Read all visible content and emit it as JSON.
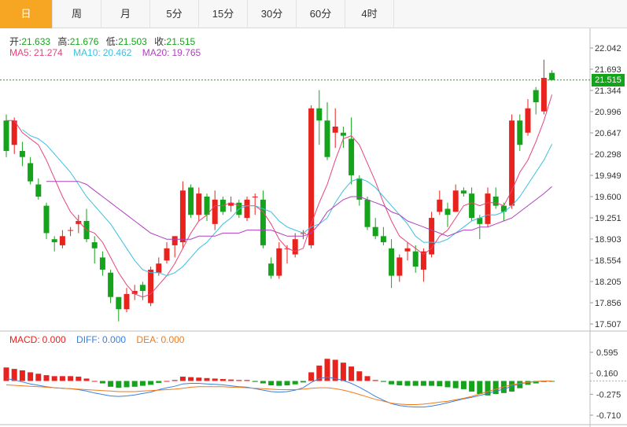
{
  "tabs": [
    {
      "label": "日",
      "active": true
    },
    {
      "label": "周"
    },
    {
      "label": "月"
    },
    {
      "label": "5分"
    },
    {
      "label": "15分"
    },
    {
      "label": "30分"
    },
    {
      "label": "60分"
    },
    {
      "label": "4时"
    }
  ],
  "ohlc": {
    "open_label": "开:",
    "open": "21.633",
    "high_label": "高:",
    "high": "21.676",
    "low_label": "低:",
    "low": "21.503",
    "close_label": "收:",
    "close": "21.515"
  },
  "ma": {
    "ma5_label": "MA5:",
    "ma5": "21.274",
    "ma10_label": "MA10:",
    "ma10": "20.462",
    "ma20_label": "MA20:",
    "ma20": "19.765"
  },
  "macd": {
    "macd_label": "MACD:",
    "macd": "0.000",
    "diff_label": "DIFF:",
    "diff": "0.000",
    "dea_label": "DEA:",
    "dea": "0.000"
  },
  "current_price": "21.515",
  "colors": {
    "up": "#e8221c",
    "down": "#16a31c",
    "ma5": "#e8447a",
    "ma10": "#3bbfe0",
    "ma20": "#b040c0",
    "diff": "#3b7fe0",
    "dea": "#f07a1a",
    "tab_active": "#f6a623"
  },
  "chart_data": [
    {
      "type": "candlestick",
      "y_ticks": [
        "22.042",
        "21.693",
        "21.344",
        "20.996",
        "20.647",
        "20.298",
        "19.949",
        "19.600",
        "19.251",
        "18.903",
        "18.554",
        "18.205",
        "17.856",
        "17.507"
      ],
      "ylim": [
        17.507,
        22.042
      ],
      "candles": [
        [
          20.85,
          20.35,
          20.95,
          20.25
        ],
        [
          20.45,
          20.85,
          20.9,
          20.3
        ],
        [
          20.35,
          20.25,
          20.5,
          20.1
        ],
        [
          20.15,
          19.85,
          20.25,
          19.8
        ],
        [
          19.8,
          19.6,
          19.9,
          19.55
        ],
        [
          19.45,
          19.0,
          19.5,
          18.9
        ],
        [
          18.9,
          18.85,
          18.95,
          18.7
        ],
        [
          18.8,
          18.95,
          19.05,
          18.75
        ],
        [
          19.05,
          19.05,
          19.1,
          18.95
        ],
        [
          19.15,
          19.2,
          19.3,
          19.0
        ],
        [
          19.2,
          18.9,
          19.4,
          18.85
        ],
        [
          18.85,
          18.75,
          18.95,
          18.5
        ],
        [
          18.6,
          18.4,
          18.7,
          18.3
        ],
        [
          18.35,
          17.95,
          18.4,
          17.85
        ],
        [
          17.95,
          17.75,
          17.95,
          17.55
        ],
        [
          17.75,
          18.0,
          18.1,
          17.7
        ],
        [
          18.0,
          18.05,
          18.15,
          17.9
        ],
        [
          18.15,
          18.05,
          18.2,
          17.9
        ],
        [
          17.85,
          18.4,
          18.45,
          17.8
        ],
        [
          18.35,
          18.5,
          18.6,
          18.3
        ],
        [
          18.55,
          18.75,
          18.85,
          18.5
        ],
        [
          18.8,
          18.95,
          18.95,
          18.6
        ],
        [
          18.85,
          19.7,
          19.85,
          18.75
        ],
        [
          19.75,
          19.3,
          19.8,
          19.25
        ],
        [
          19.3,
          19.65,
          19.75,
          19.2
        ],
        [
          19.6,
          19.3,
          19.65,
          19.2
        ],
        [
          19.15,
          19.55,
          19.7,
          19.05
        ],
        [
          19.55,
          19.35,
          19.6,
          19.3
        ],
        [
          19.45,
          19.5,
          19.6,
          19.35
        ],
        [
          19.5,
          19.3,
          19.55,
          19.25
        ],
        [
          19.25,
          19.55,
          19.6,
          19.2
        ],
        [
          19.6,
          19.6,
          19.65,
          19.3
        ],
        [
          19.55,
          18.8,
          19.7,
          18.75
        ],
        [
          18.5,
          18.3,
          18.6,
          18.25
        ],
        [
          18.3,
          18.75,
          18.85,
          18.25
        ],
        [
          18.75,
          18.75,
          18.8,
          18.5
        ],
        [
          18.65,
          18.9,
          19.0,
          18.6
        ],
        [
          19.0,
          19.0,
          19.05,
          18.9
        ],
        [
          18.8,
          21.05,
          21.1,
          18.75
        ],
        [
          21.05,
          20.85,
          21.35,
          20.45
        ],
        [
          20.85,
          20.25,
          21.15,
          20.2
        ],
        [
          20.65,
          20.75,
          21.05,
          20.4
        ],
        [
          20.65,
          20.6,
          20.75,
          20.4
        ],
        [
          20.55,
          19.95,
          20.9,
          19.8
        ],
        [
          19.9,
          19.55,
          19.95,
          19.45
        ],
        [
          19.55,
          19.1,
          19.6,
          19.05
        ],
        [
          19.1,
          18.95,
          19.25,
          18.9
        ],
        [
          18.95,
          18.85,
          19.1,
          18.8
        ],
        [
          18.75,
          18.3,
          18.9,
          18.1
        ],
        [
          18.3,
          18.6,
          18.65,
          18.2
        ],
        [
          18.7,
          18.75,
          18.85,
          18.55
        ],
        [
          18.7,
          18.45,
          18.8,
          18.35
        ],
        [
          18.4,
          18.7,
          18.75,
          18.2
        ],
        [
          18.65,
          19.25,
          19.35,
          18.6
        ],
        [
          19.35,
          19.55,
          19.7,
          19.3
        ],
        [
          19.4,
          19.3,
          19.5,
          19.1
        ],
        [
          19.35,
          19.7,
          19.8,
          19.35
        ],
        [
          19.7,
          19.65,
          19.75,
          19.6
        ],
        [
          19.65,
          19.25,
          19.75,
          19.2
        ],
        [
          19.25,
          19.15,
          19.3,
          18.9
        ],
        [
          19.15,
          19.65,
          19.75,
          19.1
        ],
        [
          19.6,
          19.45,
          19.75,
          19.4
        ],
        [
          19.45,
          19.35,
          19.5,
          19.2
        ],
        [
          19.45,
          20.85,
          20.95,
          19.4
        ],
        [
          20.85,
          20.45,
          20.95,
          20.35
        ],
        [
          20.65,
          21.05,
          21.2,
          20.6
        ],
        [
          21.35,
          21.15,
          21.4,
          20.95
        ],
        [
          21.0,
          21.55,
          21.85,
          20.95
        ],
        [
          21.633,
          21.515,
          21.676,
          21.503
        ]
      ],
      "ma_series": [
        {
          "name": "MA5",
          "values": [
            20.85,
            20.85,
            20.65,
            20.55,
            20.45,
            20.2,
            19.9,
            19.6,
            19.35,
            19.2,
            19.05,
            19.0,
            18.85,
            18.6,
            18.35,
            18.15,
            18.0,
            17.95,
            18.0,
            18.15,
            18.3,
            18.5,
            18.75,
            19.0,
            19.2,
            19.3,
            19.45,
            19.45,
            19.5,
            19.45,
            19.45,
            19.45,
            19.35,
            19.15,
            18.9,
            18.75,
            18.7,
            18.75,
            19.15,
            19.5,
            19.8,
            20.2,
            20.55,
            20.6,
            20.45,
            20.15,
            19.85,
            19.5,
            19.2,
            18.95,
            18.85,
            18.75,
            18.65,
            18.75,
            18.95,
            19.05,
            19.25,
            19.45,
            19.5,
            19.45,
            19.5,
            19.5,
            19.45,
            19.7,
            20.0,
            20.2,
            20.5,
            20.85,
            21.274
          ]
        },
        {
          "name": "MA10",
          "values": [
            null,
            null,
            20.7,
            20.6,
            20.55,
            20.45,
            20.3,
            20.15,
            20.0,
            19.8,
            19.6,
            19.45,
            19.3,
            19.15,
            18.95,
            18.75,
            18.55,
            18.4,
            18.35,
            18.35,
            18.3,
            18.35,
            18.45,
            18.6,
            18.75,
            18.85,
            19.0,
            19.15,
            19.25,
            19.4,
            19.45,
            19.45,
            19.4,
            19.35,
            19.2,
            19.1,
            19.05,
            19.0,
            19.1,
            19.15,
            19.25,
            19.5,
            19.7,
            19.85,
            19.9,
            19.85,
            19.75,
            19.6,
            19.45,
            19.3,
            19.15,
            18.95,
            18.85,
            18.85,
            18.85,
            18.9,
            19.0,
            19.1,
            19.2,
            19.25,
            19.3,
            19.3,
            19.35,
            19.45,
            19.6,
            19.8,
            20.0,
            20.2,
            20.462
          ]
        },
        {
          "name": "MA20",
          "values": [
            null,
            null,
            null,
            null,
            null,
            19.85,
            19.85,
            19.85,
            19.85,
            19.85,
            19.8,
            19.7,
            19.6,
            19.5,
            19.4,
            19.3,
            19.2,
            19.1,
            19.0,
            18.95,
            18.9,
            18.9,
            18.9,
            18.9,
            18.95,
            18.95,
            18.95,
            19.0,
            19.0,
            19.0,
            19.05,
            19.05,
            19.05,
            19.05,
            19.0,
            18.95,
            18.95,
            18.95,
            19.0,
            19.15,
            19.35,
            19.45,
            19.55,
            19.6,
            19.6,
            19.55,
            19.5,
            19.45,
            19.35,
            19.3,
            19.2,
            19.15,
            19.1,
            19.05,
            19.0,
            18.95,
            19.0,
            19.05,
            19.05,
            19.1,
            19.1,
            19.15,
            19.2,
            19.25,
            19.35,
            19.45,
            19.55,
            19.65,
            19.765
          ]
        }
      ]
    },
    {
      "type": "macd",
      "y_ticks": [
        "0.595",
        "0.160",
        "-0.275",
        "-0.710"
      ],
      "ylim": [
        -0.71,
        0.595
      ],
      "histogram": [
        0.28,
        0.25,
        0.22,
        0.18,
        0.15,
        0.12,
        0.1,
        0.1,
        0.1,
        0.09,
        0.05,
        0.0,
        -0.05,
        -0.12,
        -0.14,
        -0.13,
        -0.12,
        -0.1,
        -0.08,
        -0.04,
        0.0,
        0.02,
        0.09,
        0.08,
        0.07,
        0.06,
        0.05,
        0.04,
        0.03,
        0.02,
        0.02,
        -0.02,
        -0.05,
        -0.09,
        -0.1,
        -0.09,
        -0.07,
        -0.03,
        0.18,
        0.32,
        0.46,
        0.44,
        0.38,
        0.3,
        0.2,
        0.1,
        0.02,
        -0.02,
        -0.07,
        -0.09,
        -0.1,
        -0.1,
        -0.1,
        -0.1,
        -0.11,
        -0.13,
        -0.15,
        -0.17,
        -0.22,
        -0.27,
        -0.3,
        -0.27,
        -0.25,
        -0.22,
        -0.15,
        -0.08,
        -0.05,
        -0.02,
        -0.01
      ],
      "diff": [
        0.05,
        0.02,
        -0.02,
        -0.06,
        -0.09,
        -0.12,
        -0.14,
        -0.15,
        -0.16,
        -0.18,
        -0.21,
        -0.25,
        -0.28,
        -0.31,
        -0.32,
        -0.31,
        -0.29,
        -0.26,
        -0.23,
        -0.18,
        -0.14,
        -0.11,
        -0.06,
        -0.05,
        -0.05,
        -0.06,
        -0.07,
        -0.08,
        -0.1,
        -0.12,
        -0.13,
        -0.16,
        -0.19,
        -0.22,
        -0.23,
        -0.22,
        -0.19,
        -0.14,
        -0.03,
        0.05,
        0.08,
        0.05,
        0.01,
        -0.05,
        -0.13,
        -0.22,
        -0.32,
        -0.4,
        -0.47,
        -0.51,
        -0.53,
        -0.54,
        -0.54,
        -0.52,
        -0.49,
        -0.45,
        -0.41,
        -0.37,
        -0.34,
        -0.3,
        -0.26,
        -0.21,
        -0.17,
        -0.11,
        -0.06,
        -0.03,
        -0.01,
        0.0,
        0.0
      ],
      "dea": [
        -0.08,
        -0.09,
        -0.1,
        -0.11,
        -0.12,
        -0.13,
        -0.14,
        -0.15,
        -0.16,
        -0.17,
        -0.18,
        -0.19,
        -0.2,
        -0.21,
        -0.22,
        -0.22,
        -0.22,
        -0.21,
        -0.2,
        -0.19,
        -0.18,
        -0.17,
        -0.15,
        -0.13,
        -0.12,
        -0.12,
        -0.12,
        -0.12,
        -0.13,
        -0.13,
        -0.14,
        -0.15,
        -0.16,
        -0.17,
        -0.18,
        -0.18,
        -0.18,
        -0.17,
        -0.15,
        -0.14,
        -0.14,
        -0.16,
        -0.19,
        -0.23,
        -0.28,
        -0.33,
        -0.38,
        -0.42,
        -0.46,
        -0.48,
        -0.49,
        -0.49,
        -0.48,
        -0.46,
        -0.44,
        -0.42,
        -0.39,
        -0.36,
        -0.32,
        -0.27,
        -0.22,
        -0.17,
        -0.12,
        -0.08,
        -0.05,
        -0.03,
        -0.01,
        0.0,
        0.0
      ]
    }
  ]
}
